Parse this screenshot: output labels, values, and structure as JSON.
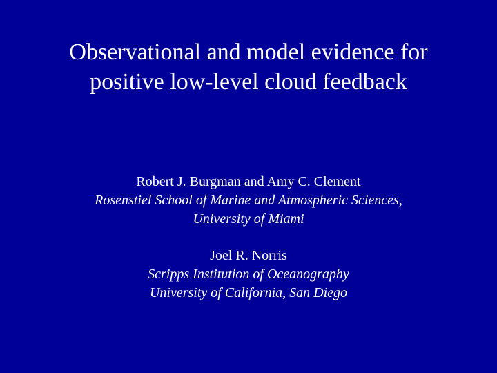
{
  "background_color": "#000099",
  "text_color": "#ffffff",
  "font_family": "Times New Roman",
  "title": {
    "line1": "Observational and model evidence for",
    "line2": "positive low-level cloud feedback",
    "fontsize": 34
  },
  "block1": {
    "authors": "Robert J. Burgman and Amy C. Clement",
    "affil1": "Rosenstiel School of Marine and Atmospheric Sciences,",
    "affil2": "University of Miami"
  },
  "block2": {
    "authors": "Joel R. Norris",
    "affil1": "Scripps Institution of Oceanography",
    "affil2": "University of California, San Diego"
  },
  "body_fontsize": 20
}
